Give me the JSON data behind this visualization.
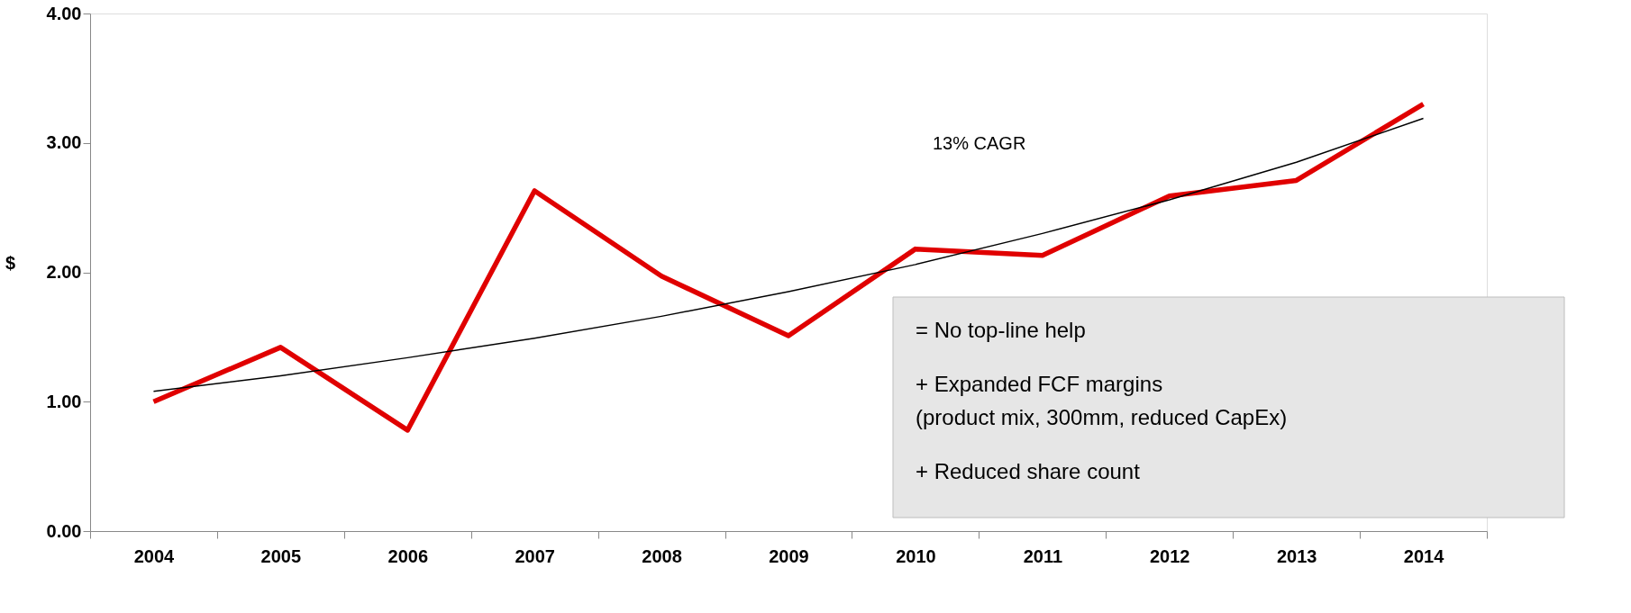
{
  "chart_data": {
    "type": "line",
    "ylabel": "$",
    "categories": [
      "2004",
      "2005",
      "2006",
      "2007",
      "2008",
      "2009",
      "2010",
      "2011",
      "2012",
      "2013",
      "2014"
    ],
    "series": [
      {
        "color": "#e00000",
        "values": [
          1.0,
          1.42,
          0.78,
          2.63,
          1.97,
          1.51,
          2.18,
          2.13,
          2.59,
          2.71,
          3.3
        ]
      },
      {
        "type": "line",
        "color": "#000000",
        "values": [
          1.08,
          1.2,
          1.34,
          1.49,
          1.66,
          1.85,
          2.06,
          2.3,
          2.56,
          2.85,
          3.19
        ]
      }
    ],
    "ylim": [
      0,
      4
    ],
    "yticks": [
      {
        "value": 0,
        "label": "0.00"
      },
      {
        "value": 1,
        "label": "1.00"
      },
      {
        "value": 2,
        "label": "2.00"
      },
      {
        "value": 3,
        "label": "3.00"
      },
      {
        "value": 4,
        "label": "4.00"
      }
    ],
    "grid": false,
    "marker": "none",
    "line_style": "solid",
    "annotations": [
      "13% CAGR",
      "= No top-line help",
      "+ Expanded FCF margins",
      "(product mix, 300mm, reduced CapEx)",
      "+ Reduced share count"
    ]
  }
}
